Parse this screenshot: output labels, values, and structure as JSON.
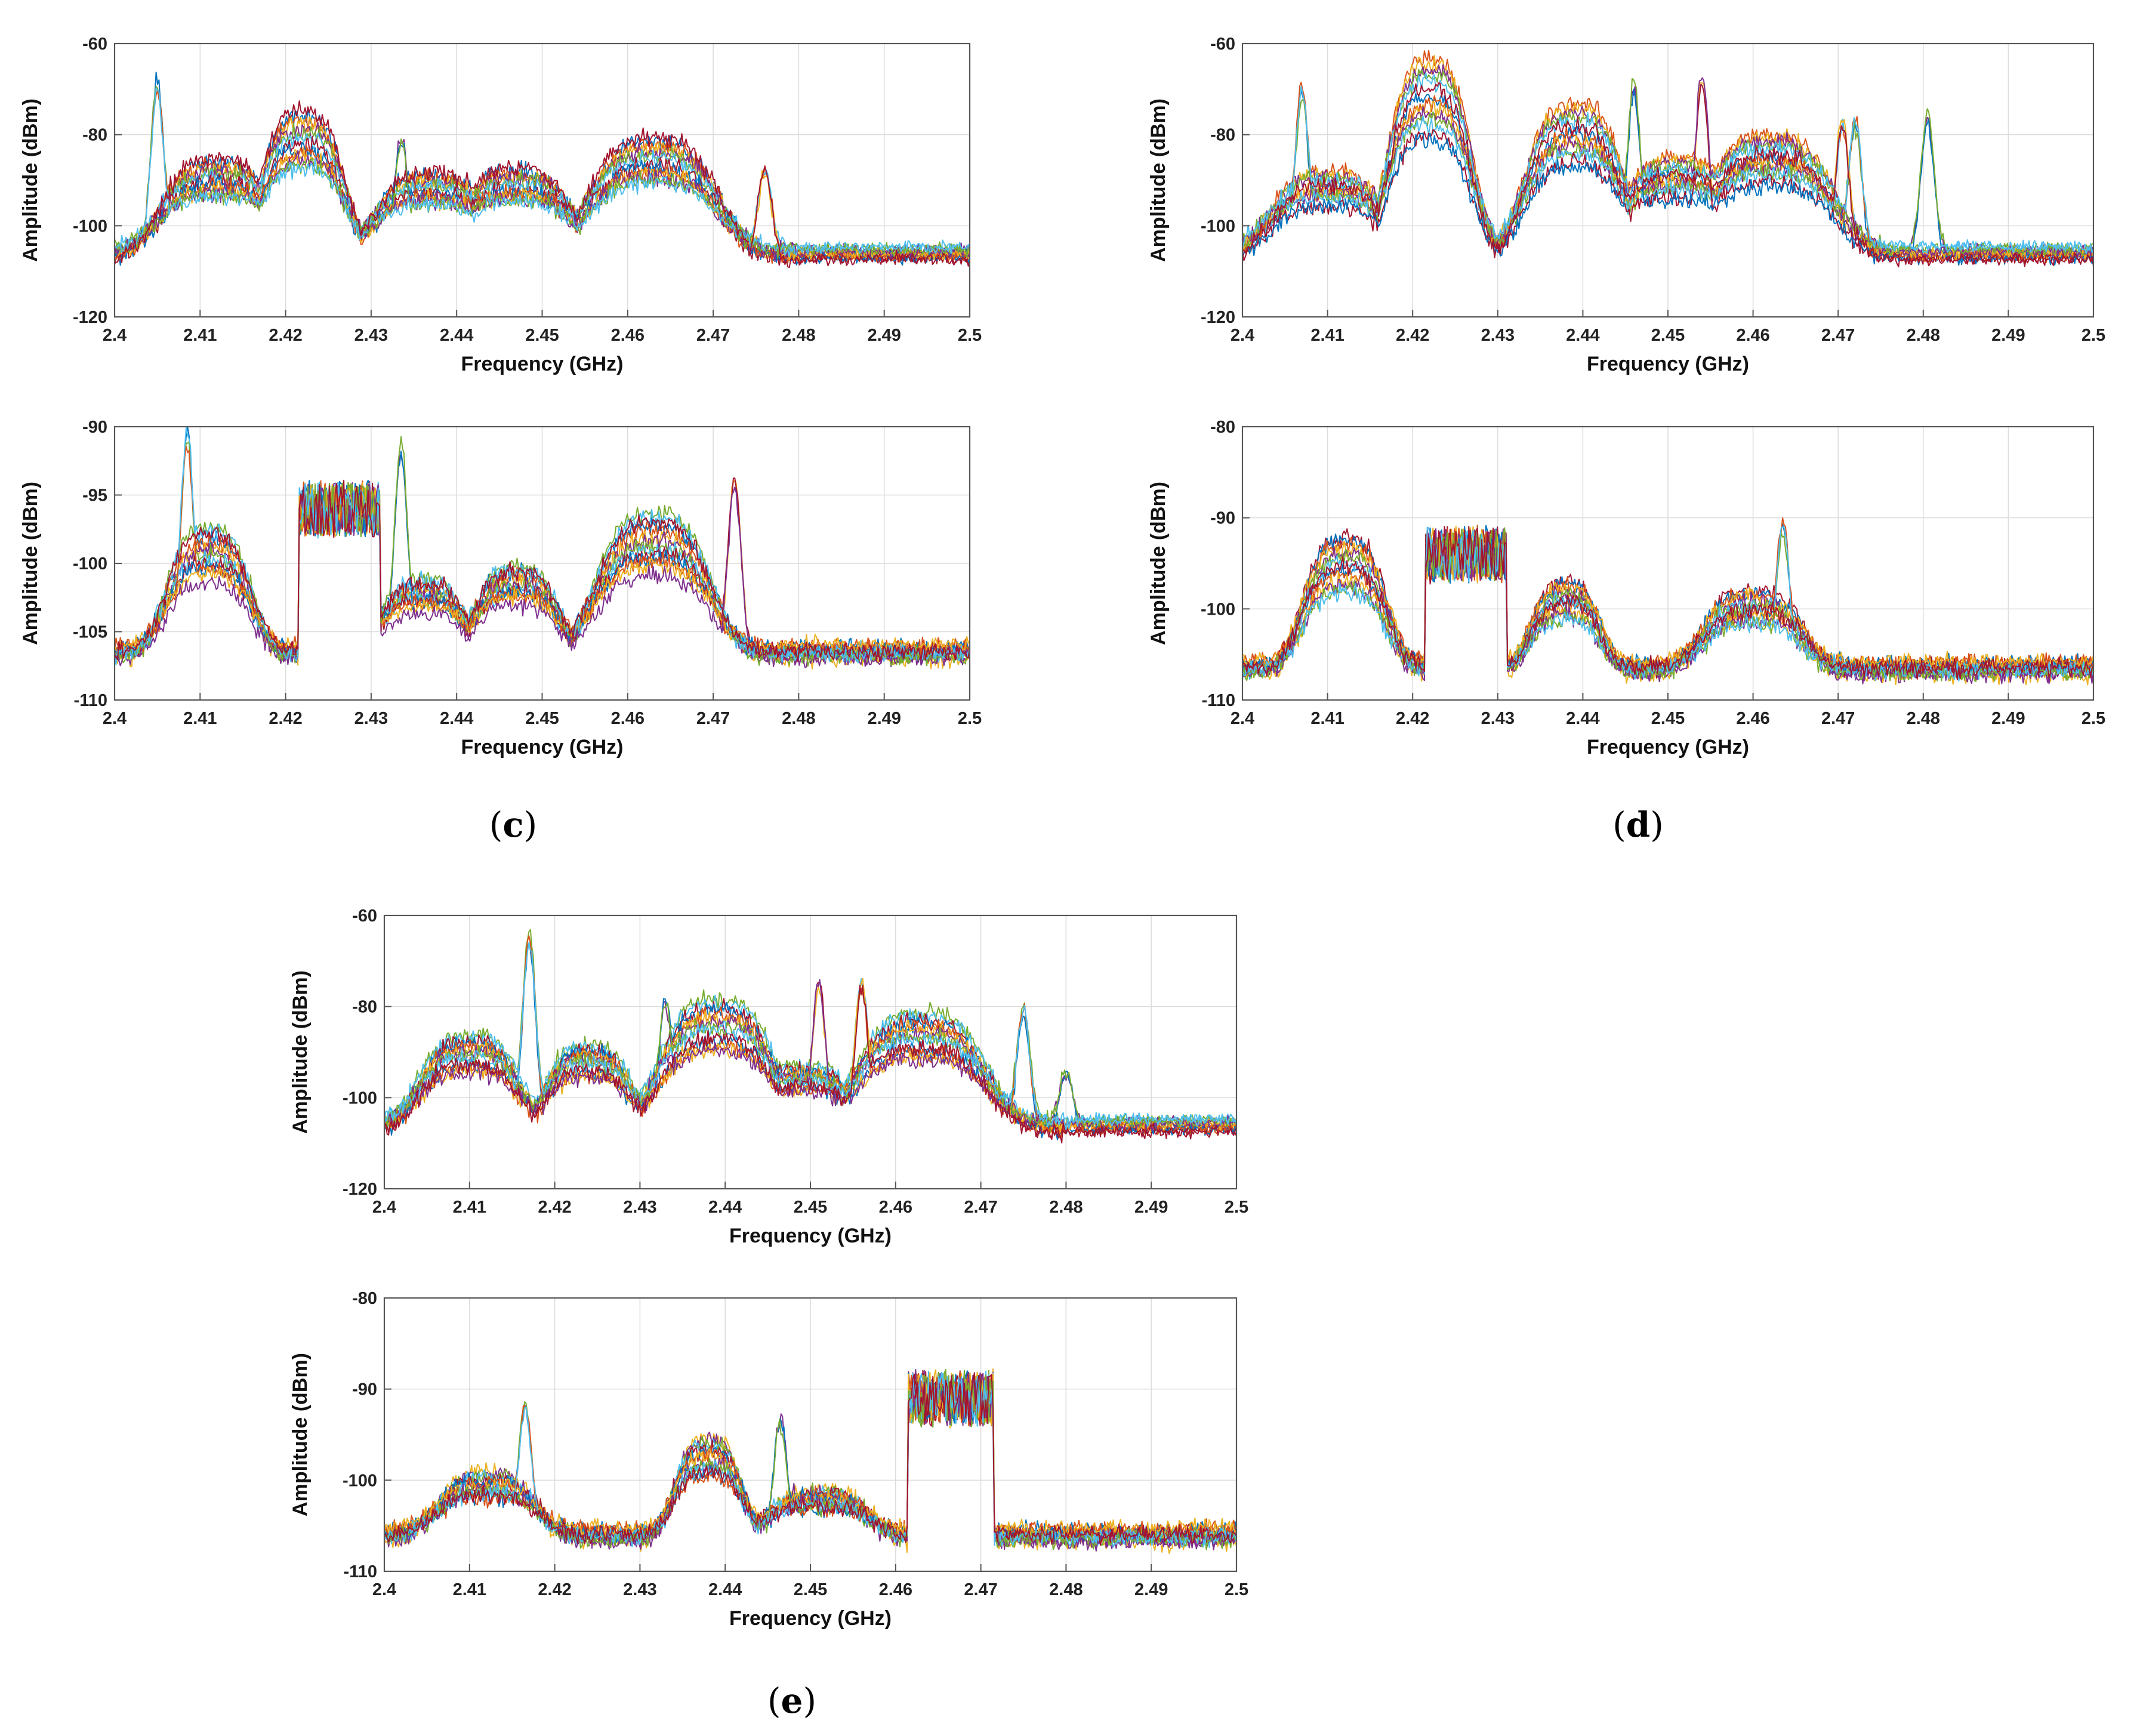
{
  "figure": {
    "panels": [
      {
        "id": "c",
        "label": "(c)",
        "prefix": "(",
        "letter": "c",
        "suffix": ")"
      },
      {
        "id": "d",
        "label": "(d)",
        "prefix": "(",
        "letter": "d",
        "suffix": ")"
      },
      {
        "id": "e",
        "label": "(e)",
        "prefix": "(",
        "letter": "e",
        "suffix": ")"
      }
    ]
  },
  "colors": {
    "series": [
      "#0072BD",
      "#D95319",
      "#EDB120",
      "#7E2F8E",
      "#77AC30",
      "#4DBEEE",
      "#A2142F"
    ],
    "grid": "#dcdcdc",
    "axis": "#555555"
  },
  "chart_data": [
    {
      "id": "c-top",
      "panel": "c",
      "type": "line",
      "title": "",
      "xlabel": "Frequency (GHz)",
      "ylabel": "Amplitude (dBm)",
      "xlim": [
        2.4,
        2.5
      ],
      "ylim": [
        -120,
        -60
      ],
      "xticks": [
        "2.4",
        "2.41",
        "2.42",
        "2.43",
        "2.44",
        "2.45",
        "2.46",
        "2.47",
        "2.48",
        "2.49",
        "2.5"
      ],
      "yticks": [
        "-60",
        "-80",
        "-100",
        "-120"
      ],
      "grid": true,
      "series_count": 7,
      "noise_floor": -106,
      "noise_band_end": 2.48,
      "humps": [
        {
          "center": 2.412,
          "width": 0.0075,
          "peak": -85
        },
        {
          "center": 2.422,
          "width": 0.0055,
          "peak": -74
        },
        {
          "center": 2.437,
          "width": 0.0075,
          "peak": -88
        },
        {
          "center": 2.447,
          "width": 0.0075,
          "peak": -87
        },
        {
          "center": 2.463,
          "width": 0.0085,
          "peak": -80
        }
      ],
      "spikes": [
        {
          "x": 2.405,
          "peak": -67
        },
        {
          "x": 2.4335,
          "peak": -79
        },
        {
          "x": 2.4675,
          "peak": -89
        },
        {
          "x": 2.476,
          "peak": -87
        }
      ]
    },
    {
      "id": "c-bottom",
      "panel": "c",
      "type": "line",
      "title": "",
      "xlabel": "Frequency (GHz)",
      "ylabel": "Amplitude (dBm)",
      "xlim": [
        2.4,
        2.5
      ],
      "ylim": [
        -110,
        -90
      ],
      "xticks": [
        "2.4",
        "2.41",
        "2.42",
        "2.43",
        "2.44",
        "2.45",
        "2.46",
        "2.47",
        "2.48",
        "2.49",
        "2.5"
      ],
      "yticks": [
        "-90",
        "-95",
        "-100",
        "-105",
        "-110"
      ],
      "grid": true,
      "series_count": 7,
      "noise_floor": -106.5,
      "gap": [
        2.4215,
        2.431
      ],
      "block": {
        "from": 2.4215,
        "to": 2.431,
        "level": -96
      },
      "humps": [
        {
          "center": 2.411,
          "width": 0.0055,
          "peak": -97
        },
        {
          "center": 2.436,
          "width": 0.0055,
          "peak": -101
        },
        {
          "center": 2.447,
          "width": 0.0055,
          "peak": -100
        },
        {
          "center": 2.463,
          "width": 0.0075,
          "peak": -96
        }
      ],
      "spikes": [
        {
          "x": 2.4085,
          "peak": -90
        },
        {
          "x": 2.4335,
          "peak": -91
        },
        {
          "x": 2.4725,
          "peak": -93
        }
      ]
    },
    {
      "id": "d-top",
      "panel": "d",
      "type": "line",
      "title": "",
      "xlabel": "Frequency (GHz)",
      "ylabel": "Amplitude (dBm)",
      "xlim": [
        2.4,
        2.5
      ],
      "ylim": [
        -120,
        -60
      ],
      "xticks": [
        "2.4",
        "2.41",
        "2.42",
        "2.43",
        "2.44",
        "2.45",
        "2.46",
        "2.47",
        "2.48",
        "2.49",
        "2.5"
      ],
      "yticks": [
        "-60",
        "-80",
        "-100",
        "-120"
      ],
      "grid": true,
      "series_count": 7,
      "noise_floor": -106,
      "noise_band_end": 2.475,
      "humps": [
        {
          "center": 2.41,
          "width": 0.0075,
          "peak": -88
        },
        {
          "center": 2.422,
          "width": 0.0055,
          "peak": -63
        },
        {
          "center": 2.439,
          "width": 0.0065,
          "peak": -73
        },
        {
          "center": 2.451,
          "width": 0.0075,
          "peak": -85
        },
        {
          "center": 2.462,
          "width": 0.0085,
          "peak": -80
        }
      ],
      "spikes": [
        {
          "x": 2.407,
          "peak": -69
        },
        {
          "x": 2.446,
          "peak": -67
        },
        {
          "x": 2.454,
          "peak": -65
        },
        {
          "x": 2.4705,
          "peak": -76
        },
        {
          "x": 2.472,
          "peak": -76
        },
        {
          "x": 2.4805,
          "peak": -74
        }
      ]
    },
    {
      "id": "d-bottom",
      "panel": "d",
      "type": "line",
      "title": "",
      "xlabel": "Frequency (GHz)",
      "ylabel": "Amplitude (dBm)",
      "xlim": [
        2.4,
        2.5
      ],
      "ylim": [
        -110,
        -80
      ],
      "xticks": [
        "2.4",
        "2.41",
        "2.42",
        "2.43",
        "2.44",
        "2.45",
        "2.46",
        "2.47",
        "2.48",
        "2.49",
        "2.5"
      ],
      "yticks": [
        "-80",
        "-90",
        "-100",
        "-110"
      ],
      "grid": true,
      "series_count": 7,
      "noise_floor": -106.5,
      "gap": [
        2.4215,
        2.431
      ],
      "block": {
        "from": 2.4215,
        "to": 2.431,
        "level": -94
      },
      "humps": [
        {
          "center": 2.412,
          "width": 0.0055,
          "peak": -92
        },
        {
          "center": 2.438,
          "width": 0.0045,
          "peak": -97
        },
        {
          "center": 2.46,
          "width": 0.0065,
          "peak": -98
        }
      ],
      "spikes": [
        {
          "x": 2.4635,
          "peak": -90
        }
      ]
    },
    {
      "id": "e-top",
      "panel": "e",
      "type": "line",
      "title": "",
      "xlabel": "Frequency (GHz)",
      "ylabel": "Amplitude (dBm)",
      "xlim": [
        2.4,
        2.5
      ],
      "ylim": [
        -120,
        -60
      ],
      "xticks": [
        "2.4",
        "2.41",
        "2.42",
        "2.43",
        "2.44",
        "2.45",
        "2.46",
        "2.47",
        "2.48",
        "2.49",
        "2.5"
      ],
      "yticks": [
        "-60",
        "-80",
        "-100",
        "-120"
      ],
      "grid": true,
      "series_count": 7,
      "noise_floor": -106,
      "noise_band_end": 2.48,
      "humps": [
        {
          "center": 2.41,
          "width": 0.0065,
          "peak": -86
        },
        {
          "center": 2.424,
          "width": 0.0055,
          "peak": -88
        },
        {
          "center": 2.439,
          "width": 0.0075,
          "peak": -78
        },
        {
          "center": 2.449,
          "width": 0.0065,
          "peak": -93
        },
        {
          "center": 2.463,
          "width": 0.0085,
          "peak": -81
        }
      ],
      "spikes": [
        {
          "x": 2.417,
          "peak": -63
        },
        {
          "x": 2.433,
          "peak": -77
        },
        {
          "x": 2.451,
          "peak": -73
        },
        {
          "x": 2.456,
          "peak": -73
        },
        {
          "x": 2.475,
          "peak": -80
        },
        {
          "x": 2.48,
          "peak": -94
        }
      ]
    },
    {
      "id": "e-bottom",
      "panel": "e",
      "type": "line",
      "title": "",
      "xlabel": "Frequency (GHz)",
      "ylabel": "Amplitude (dBm)",
      "xlim": [
        2.4,
        2.5
      ],
      "ylim": [
        -110,
        -80
      ],
      "xticks": [
        "2.4",
        "2.41",
        "2.42",
        "2.43",
        "2.44",
        "2.45",
        "2.46",
        "2.47",
        "2.48",
        "2.49",
        "2.5"
      ],
      "yticks": [
        "-80",
        "-90",
        "-100",
        "-110"
      ],
      "grid": true,
      "series_count": 7,
      "noise_floor": -106,
      "gap": [
        2.4615,
        2.4715
      ],
      "block": {
        "from": 2.4615,
        "to": 2.4715,
        "level": -91
      },
      "humps": [
        {
          "center": 2.412,
          "width": 0.0065,
          "peak": -99
        },
        {
          "center": 2.438,
          "width": 0.0045,
          "peak": -95
        },
        {
          "center": 2.451,
          "width": 0.0065,
          "peak": -101
        }
      ],
      "spikes": [
        {
          "x": 2.4165,
          "peak": -91
        },
        {
          "x": 2.4465,
          "peak": -93
        }
      ]
    }
  ]
}
